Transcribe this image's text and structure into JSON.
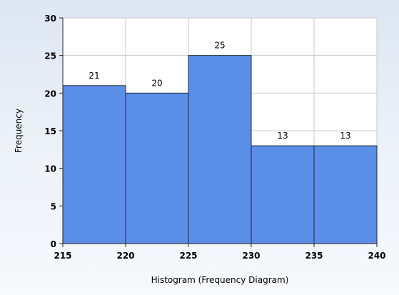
{
  "chart_data": {
    "type": "bar",
    "bins": [
      {
        "start": 215,
        "end": 220,
        "value": 21
      },
      {
        "start": 220,
        "end": 225,
        "value": 20
      },
      {
        "start": 225,
        "end": 230,
        "value": 25
      },
      {
        "start": 230,
        "end": 235,
        "value": 13
      },
      {
        "start": 235,
        "end": 240,
        "value": 13
      }
    ],
    "x_ticks": [
      "215",
      "220",
      "225",
      "230",
      "235",
      "240"
    ],
    "y_ticks": [
      "0",
      "5",
      "10",
      "15",
      "20",
      "25",
      "30"
    ],
    "xlim": [
      215,
      240
    ],
    "ylim": [
      0,
      30
    ],
    "xlabel": "Histogram (Frequency Diagram)",
    "ylabel": "Frequency",
    "grid": true,
    "bar_color": "#5b8ee6",
    "bar_border_color": "#1f2b3d"
  }
}
